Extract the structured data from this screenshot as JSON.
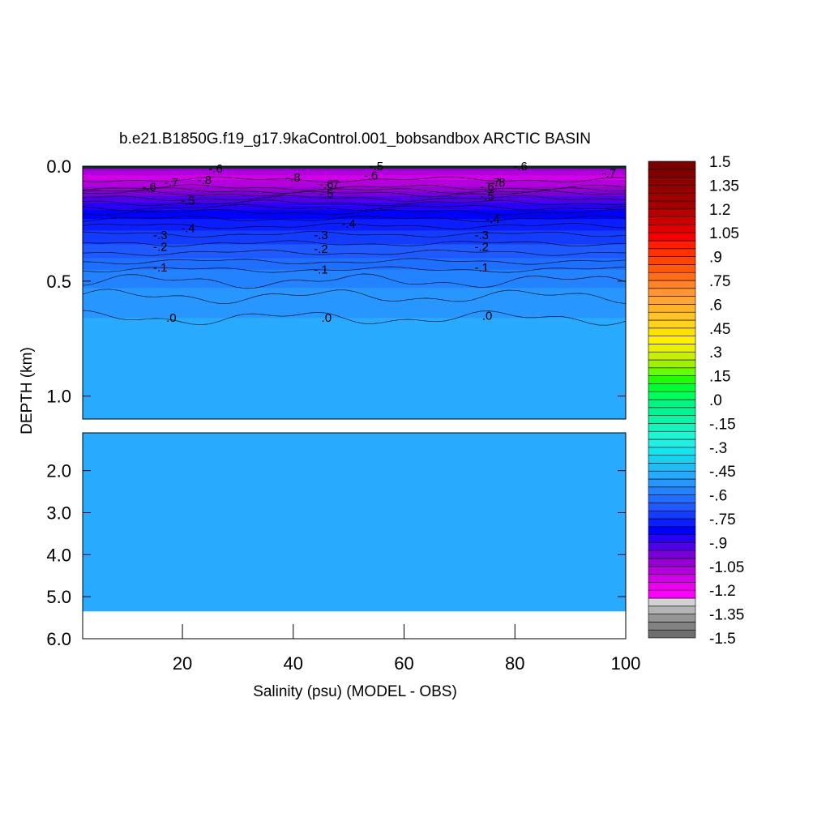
{
  "chart_data": {
    "type": "heatmap",
    "title": "b.e21.B1850G.f19_g17.9kaControl.001_bobsandbox ARCTIC BASIN",
    "xlabel": "Salinity (psu) (MODEL - OBS)",
    "ylabel": "DEPTH (km)",
    "xlim": [
      2,
      100
    ],
    "x_ticks": [
      20,
      40,
      60,
      80,
      100
    ],
    "x_tick_labels": [
      "20",
      "40",
      "60",
      "80",
      "100"
    ],
    "upper_panel": {
      "ylim": [
        0.0,
        1.1
      ],
      "y_ticks": [
        0.0,
        0.5,
        1.0
      ],
      "y_tick_labels": [
        "0.0",
        "0.5",
        "1.0"
      ]
    },
    "lower_panel": {
      "ylim": [
        1.1,
        6.0
      ],
      "y_ticks": [
        2.0,
        3.0,
        4.0,
        5.0,
        6.0
      ],
      "y_tick_labels": [
        "2.0",
        "3.0",
        "4.0",
        "5.0",
        "6.0"
      ],
      "data_bottom_depth": 5.35
    },
    "profile_depths": [
      0.0,
      0.02,
      0.05,
      0.08,
      0.12,
      0.16,
      0.2,
      0.24,
      0.28,
      0.32,
      0.36,
      0.4,
      0.45,
      0.5,
      0.55,
      0.6,
      0.66,
      0.72,
      1.1
    ],
    "profile_values": [
      -0.5,
      -0.85,
      -0.92,
      -0.85,
      -0.7,
      -0.6,
      -0.5,
      -0.43,
      -0.37,
      -0.32,
      -0.27,
      -0.22,
      -0.15,
      -0.1,
      -0.06,
      -0.03,
      0.0,
      0.02,
      0.03
    ],
    "contour_levels": [
      -0.8,
      -0.7,
      -0.6,
      -0.5,
      -0.4,
      -0.3,
      -0.2,
      -0.1,
      0.0
    ],
    "contour_labels": [
      {
        "x": 18,
        "depth": 0.07,
        "text": "-.7"
      },
      {
        "x": 14,
        "depth": 0.09,
        "text": "-.6"
      },
      {
        "x": 24,
        "depth": 0.06,
        "text": "-.8"
      },
      {
        "x": 26,
        "depth": 0.01,
        "text": "-.6"
      },
      {
        "x": 21,
        "depth": 0.15,
        "text": "-.5"
      },
      {
        "x": 21,
        "depth": 0.27,
        "text": "-.4"
      },
      {
        "x": 16,
        "depth": 0.3,
        "text": "-.3"
      },
      {
        "x": 16,
        "depth": 0.35,
        "text": "-.2"
      },
      {
        "x": 16,
        "depth": 0.44,
        "text": "-.1"
      },
      {
        "x": 18,
        "depth": 0.66,
        "text": ".0"
      },
      {
        "x": 40,
        "depth": 0.05,
        "text": "-.8"
      },
      {
        "x": 46,
        "depth": 0.08,
        "text": "-.6"
      },
      {
        "x": 47,
        "depth": 0.08,
        "text": "-.7"
      },
      {
        "x": 46,
        "depth": 0.12,
        "text": "-.5"
      },
      {
        "x": 50,
        "depth": 0.25,
        "text": "-.4"
      },
      {
        "x": 45,
        "depth": 0.3,
        "text": "-.3"
      },
      {
        "x": 45,
        "depth": 0.36,
        "text": "-.2"
      },
      {
        "x": 45,
        "depth": 0.45,
        "text": "-.1"
      },
      {
        "x": 46,
        "depth": 0.66,
        "text": ".0"
      },
      {
        "x": 54,
        "depth": 0.04,
        "text": "-.6"
      },
      {
        "x": 55,
        "depth": 0.0,
        "text": "-.5"
      },
      {
        "x": 75,
        "depth": 0.09,
        "text": "-.6"
      },
      {
        "x": 76,
        "depth": 0.07,
        "text": "-.7"
      },
      {
        "x": 77,
        "depth": 0.07,
        "text": "-.8"
      },
      {
        "x": 75,
        "depth": 0.13,
        "text": "-.5"
      },
      {
        "x": 76,
        "depth": 0.23,
        "text": "-.4"
      },
      {
        "x": 74,
        "depth": 0.3,
        "text": "-.3"
      },
      {
        "x": 74,
        "depth": 0.35,
        "text": "-.2"
      },
      {
        "x": 74,
        "depth": 0.44,
        "text": "-.1"
      },
      {
        "x": 75,
        "depth": 0.65,
        "text": ".0"
      },
      {
        "x": 81,
        "depth": 0.0,
        "text": "-.6"
      },
      {
        "x": 97,
        "depth": 0.03,
        "text": "-.7"
      }
    ],
    "colorbar": {
      "min": -1.5,
      "max": 1.5,
      "step": 0.075,
      "tick_labels": [
        "1.5",
        "1.35",
        "1.2",
        "1.05",
        ".9",
        ".75",
        ".6",
        ".45",
        ".3",
        ".15",
        ".0",
        "-.15",
        "-.3",
        "-.45",
        "-.6",
        "-.75",
        "-.9",
        "-1.05",
        "-1.2",
        "-1.35",
        "-1.5"
      ],
      "colors_low_to_high": [
        "#6e6e6e",
        "#828282",
        "#969696",
        "#b4b4b4",
        "#d2d2d2",
        "#ff00ff",
        "#eb00f0",
        "#d200e6",
        "#b400dc",
        "#9600d2",
        "#7800d7",
        "#5000e6",
        "#2800f5",
        "#0000ff",
        "#0a1eff",
        "#143cff",
        "#1e5aff",
        "#1e6eff",
        "#2382ff",
        "#2896ff",
        "#28aaff",
        "#1ebef5",
        "#14d2f0",
        "#14e6f0",
        "#1ef0e6",
        "#1ef5d2",
        "#14f5be",
        "#0af5aa",
        "#00f596",
        "#00f582",
        "#00ff5a",
        "#00ff32",
        "#1eff00",
        "#64ff00",
        "#a0f000",
        "#c8f000",
        "#ebf000",
        "#fff000",
        "#ffe100",
        "#ffd21e",
        "#ffc328",
        "#ffb428",
        "#ffa532",
        "#ff9632",
        "#ff8228",
        "#ff6e14",
        "#ff5a0a",
        "#ff4600",
        "#ff3200",
        "#ff1e00",
        "#f50000",
        "#e10000",
        "#cd0000",
        "#b90000",
        "#a50000",
        "#a00000",
        "#960000",
        "#8c0000",
        "#820000",
        "#780000"
      ]
    }
  }
}
